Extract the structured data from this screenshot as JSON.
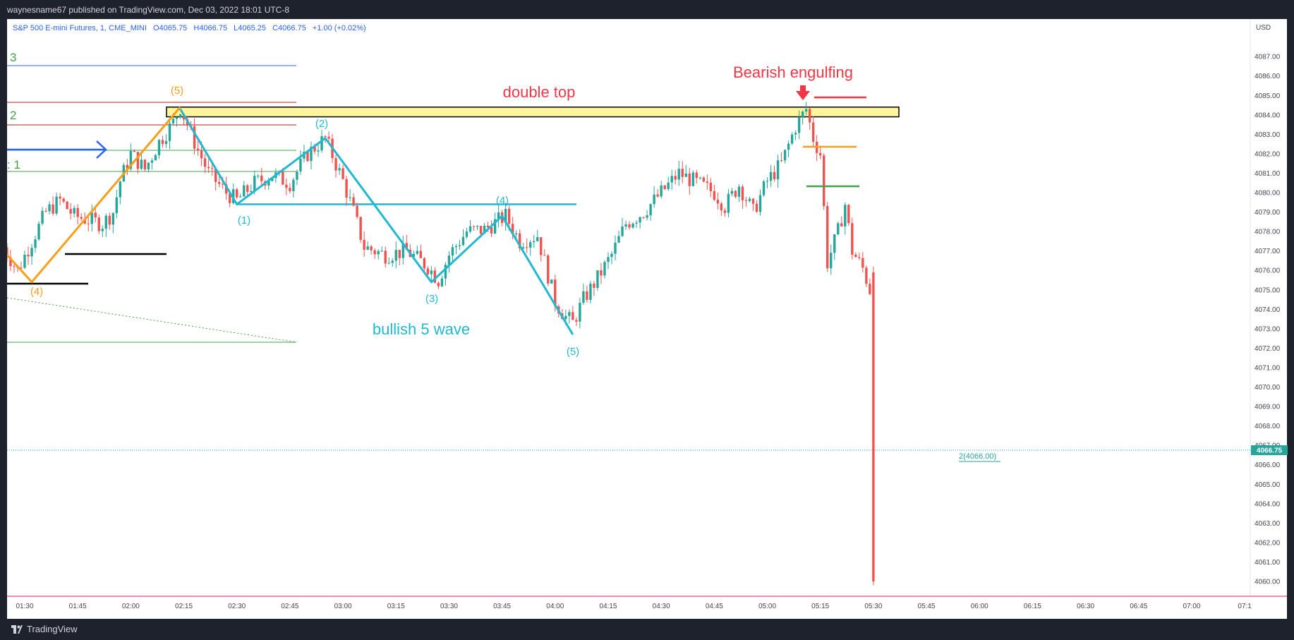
{
  "header": {
    "publisher": "waynesname67 published on TradingView.com, Dec 03, 2022 18:01 UTC-8"
  },
  "symbol": {
    "name": "S&P 500 E-mini Futures, 1, CME_MINI",
    "open": "O4065.75",
    "high": "H4066.75",
    "low": "L4065.25",
    "close": "C4066.75",
    "change": "+1.00 (+0.02%)"
  },
  "footer": {
    "brand": "TradingView"
  },
  "colors": {
    "up": "#26a69a",
    "down": "#ef5350",
    "wave": "#22b8cf",
    "orange": "#f59f1a",
    "highlight": "#fff59d"
  },
  "chart_data": {
    "type": "candlestick",
    "currency_label": "USD",
    "last_price_label": "4066.75",
    "ylim": [
      4059.5,
      4088.5
    ],
    "y_ticks": [
      "4060.00",
      "4061.00",
      "4062.00",
      "4063.00",
      "4064.00",
      "4065.00",
      "4066.00",
      "4067.00",
      "4068.00",
      "4069.00",
      "4070.00",
      "4071.00",
      "4072.00",
      "4073.00",
      "4074.00",
      "4075.00",
      "4076.00",
      "4077.00",
      "4078.00",
      "4079.00",
      "4080.00",
      "4081.00",
      "4082.00",
      "4083.00",
      "4084.00",
      "4085.00",
      "4086.00",
      "4087.00"
    ],
    "x_ticks": [
      "01:30",
      "01:45",
      "02:00",
      "02:15",
      "02:30",
      "02:45",
      "03:00",
      "03:15",
      "03:30",
      "03:45",
      "04:00",
      "04:15",
      "04:30",
      "04:45",
      "05:00",
      "05:15",
      "05:30",
      "05:45",
      "06:00",
      "06:15",
      "06:30",
      "06:45",
      "07:00",
      "07:1"
    ],
    "close_path": [
      [
        "01:24",
        4077.2
      ],
      [
        "01:28",
        4076.0
      ],
      [
        "01:32",
        4077.5
      ],
      [
        "01:36",
        4079.0
      ],
      [
        "01:40",
        4079.6
      ],
      [
        "01:44",
        4078.8
      ],
      [
        "01:48",
        4078.6
      ],
      [
        "01:52",
        4078.4
      ],
      [
        "01:55",
        4079.0
      ],
      [
        "01:57",
        4080.6
      ],
      [
        "02:00",
        4082.0
      ],
      [
        "02:04",
        4081.2
      ],
      [
        "02:08",
        4082.6
      ],
      [
        "02:12",
        4083.6
      ],
      [
        "02:14",
        4084.4
      ],
      [
        "02:18",
        4082.6
      ],
      [
        "02:22",
        4081.0
      ],
      [
        "02:27",
        4080.0
      ],
      [
        "02:30",
        4079.6
      ],
      [
        "02:35",
        4080.5
      ],
      [
        "02:40",
        4080.9
      ],
      [
        "02:45",
        4080.5
      ],
      [
        "02:50",
        4082.0
      ],
      [
        "02:55",
        4082.8
      ],
      [
        "03:00",
        4080.6
      ],
      [
        "03:03",
        4079.0
      ],
      [
        "03:06",
        4077.2
      ],
      [
        "03:12",
        4076.8
      ],
      [
        "03:18",
        4077.0
      ],
      [
        "03:24",
        4076.2
      ],
      [
        "03:27",
        4075.5
      ],
      [
        "03:30",
        4076.8
      ],
      [
        "03:35",
        4078.0
      ],
      [
        "03:40",
        4078.1
      ],
      [
        "03:46",
        4078.8
      ],
      [
        "03:50",
        4077.5
      ],
      [
        "03:55",
        4077.8
      ],
      [
        "04:00",
        4074.4
      ],
      [
        "04:03",
        4073.6
      ],
      [
        "04:05",
        4073.3
      ],
      [
        "04:08",
        4074.5
      ],
      [
        "04:12",
        4075.6
      ],
      [
        "04:16",
        4076.8
      ],
      [
        "04:20",
        4078.4
      ],
      [
        "04:25",
        4079.0
      ],
      [
        "04:30",
        4080.0
      ],
      [
        "04:35",
        4081.0
      ],
      [
        "04:40",
        4080.5
      ],
      [
        "04:45",
        4080.0
      ],
      [
        "04:48",
        4079.3
      ],
      [
        "04:52",
        4080.4
      ],
      [
        "04:56",
        4079.0
      ],
      [
        "05:00",
        4080.6
      ],
      [
        "05:04",
        4081.5
      ],
      [
        "05:08",
        4083.4
      ],
      [
        "05:11",
        4084.3
      ],
      [
        "05:13",
        4082.8
      ],
      [
        "05:15",
        4082.0
      ],
      [
        "05:17",
        4076.4
      ],
      [
        "05:20",
        4078.0
      ],
      [
        "05:22",
        4079.4
      ],
      [
        "05:24",
        4077.0
      ],
      [
        "05:27",
        4076.1
      ],
      [
        "05:29",
        4075.0
      ],
      [
        "05:30",
        4075.6
      ]
    ],
    "last_candle": {
      "x": "05:30",
      "open": 4075.9,
      "close": 4060.0
    },
    "annotations": {
      "title_text": "double top",
      "bearish_text": "Bearish engulfing",
      "wave_text": "bullish 5 wave",
      "price_note": "2(4066.00)",
      "fib_labels": [
        "3",
        "2",
        "1"
      ],
      "orange_wave": {
        "labels": [
          "(4)",
          "(5)"
        ],
        "points": [
          [
            "01:24",
            4077.0
          ],
          [
            "01:32",
            4075.4
          ],
          [
            "02:14",
            4084.4
          ]
        ]
      },
      "cyan_wave": {
        "labels": [
          "(1)",
          "(2)",
          "(3)",
          "(4)",
          "(5)"
        ],
        "points": [
          [
            "02:14",
            4084.3
          ],
          [
            "02:30",
            4079.4
          ],
          [
            "02:55",
            4082.8
          ],
          [
            "03:25",
            4075.4
          ],
          [
            "03:45",
            4078.8
          ],
          [
            "04:05",
            4072.7
          ]
        ]
      },
      "resistance_zone": [
        4083.9,
        4084.4
      ],
      "neckline_price": 4079.4
    }
  }
}
